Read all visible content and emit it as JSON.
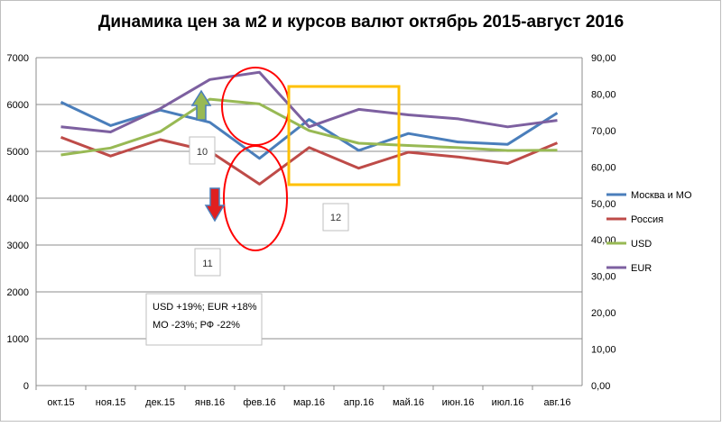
{
  "chart_data": {
    "type": "line",
    "title": "Динамика цен за м2 и курсов валют октябрь 2015-август 2016",
    "categories": [
      "окт.15",
      "ноя.15",
      "дек.15",
      "янв.16",
      "фев.16",
      "мар.16",
      "апр.16",
      "май.16",
      "июн.16",
      "июл.16",
      "авг.16"
    ],
    "y_left": {
      "ticks": [
        "0",
        "1000",
        "2000",
        "3000",
        "4000",
        "5000",
        "6000",
        "7000"
      ],
      "range": [
        0,
        7000
      ]
    },
    "y_right": {
      "ticks": [
        "0,00",
        "10,00",
        "20,00",
        "30,00",
        "40,00",
        "50,00",
        "60,00",
        "70,00",
        "80,00",
        "90,00"
      ],
      "range": [
        0,
        90
      ]
    },
    "grid": true,
    "legend_position": "right",
    "series": [
      {
        "name": "Москва и МО",
        "axis": "left",
        "color": "#4a7ebb",
        "points": [
          [
            0,
            6050
          ],
          [
            1,
            5550
          ],
          [
            2,
            5880
          ],
          [
            3,
            5620
          ],
          [
            4,
            4850
          ],
          [
            5,
            5680
          ],
          [
            6,
            5020
          ],
          [
            7,
            5380
          ],
          [
            8,
            5200
          ],
          [
            9,
            5150
          ],
          [
            10,
            5820
          ]
        ]
      },
      {
        "name": "Россия",
        "axis": "left",
        "color": "#be4b48",
        "points": [
          [
            0,
            5300
          ],
          [
            1,
            4900
          ],
          [
            2,
            5250
          ],
          [
            3,
            5000
          ],
          [
            4,
            4300
          ],
          [
            5,
            5080
          ],
          [
            6,
            4640
          ],
          [
            7,
            4980
          ],
          [
            8,
            4880
          ],
          [
            9,
            4740
          ],
          [
            10,
            5180
          ]
        ]
      },
      {
        "name": "USD",
        "axis": "right",
        "color": "#98b954",
        "points": [
          [
            0,
            63.3
          ],
          [
            1,
            65.2
          ],
          [
            2,
            69.7
          ],
          [
            3,
            78.6
          ],
          [
            4,
            77.3
          ],
          [
            5,
            70.0
          ],
          [
            6,
            66.5
          ],
          [
            7,
            65.9
          ],
          [
            8,
            65.3
          ],
          [
            9,
            64.5
          ],
          [
            10,
            64.6
          ]
        ]
      },
      {
        "name": "EUR",
        "axis": "right",
        "color": "#7d60a0",
        "points": [
          [
            0,
            71.0
          ],
          [
            1,
            69.6
          ],
          [
            2,
            76.0
          ],
          [
            3,
            84.0
          ],
          [
            4,
            86.0
          ],
          [
            5,
            71.0
          ],
          [
            6,
            75.8
          ],
          [
            7,
            74.3
          ],
          [
            8,
            73.2
          ],
          [
            9,
            71.0
          ],
          [
            10,
            72.8
          ]
        ]
      }
    ],
    "annotations": {
      "note_lines": [
        "USD +19%; EUR +18%",
        "МО -23%; РФ -22%"
      ],
      "labels": [
        "10",
        "11",
        "12"
      ]
    }
  }
}
